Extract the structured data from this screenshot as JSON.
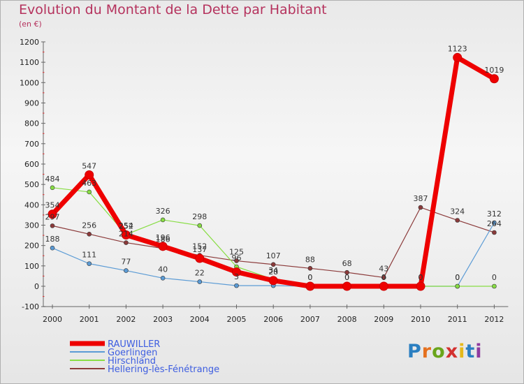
{
  "title": "Evolution du Montant de la Dette par Habitant",
  "subtitle": "(en €)",
  "logo_text": "Proxiti",
  "chart_data": {
    "type": "line",
    "title": "Evolution du Montant de la Dette par Habitant",
    "subtitle": "(en €)",
    "x": [
      "2000",
      "2001",
      "2002",
      "2003",
      "2004",
      "2005",
      "2006",
      "2007",
      "2008",
      "2009",
      "2010",
      "2011",
      "2012"
    ],
    "ylim": [
      -100,
      1200
    ],
    "yticks": [
      -100,
      0,
      100,
      200,
      300,
      400,
      500,
      600,
      700,
      800,
      900,
      1000,
      1100,
      1200
    ],
    "grid": false,
    "legend_position": "bottom-left",
    "series": [
      {
        "name": "RAUWILLER",
        "color": "#ee0000",
        "values": [
          354,
          547,
          252,
          196,
          137,
          70,
          28,
          0,
          0,
          0,
          0,
          1123,
          1019
        ],
        "labels": [
          "354",
          "547",
          "252",
          "196",
          "137",
          "",
          "28",
          "0",
          "0",
          "0",
          "0",
          "1123",
          "1019"
        ]
      },
      {
        "name": "Goerlingen",
        "color": "#5b9bd5",
        "values": [
          188,
          111,
          77,
          40,
          22,
          3,
          3,
          0,
          0,
          0,
          0,
          0,
          312
        ],
        "labels": [
          "188",
          "111",
          "77",
          "40",
          "22",
          "3",
          "",
          "",
          "",
          "",
          "",
          "0",
          "312"
        ]
      },
      {
        "name": "Hirschland",
        "color": "#88dd44",
        "values": [
          484,
          463,
          254,
          326,
          298,
          96,
          34,
          0,
          0,
          0,
          0,
          0,
          0
        ],
        "labels": [
          "484",
          "463",
          "254",
          "326",
          "298",
          "96",
          "34",
          "0",
          "0",
          "0",
          "0",
          "0",
          "0"
        ]
      },
      {
        "name": "Hellering-lès-Fénétrange",
        "color": "#8b3a3a",
        "values": [
          297,
          256,
          214,
          186,
          152,
          125,
          107,
          88,
          68,
          43,
          387,
          324,
          264
        ],
        "labels": [
          "297",
          "256",
          "214",
          "186",
          "152",
          "125",
          "107",
          "88",
          "68",
          "43",
          "387",
          "324",
          "264"
        ]
      }
    ]
  }
}
